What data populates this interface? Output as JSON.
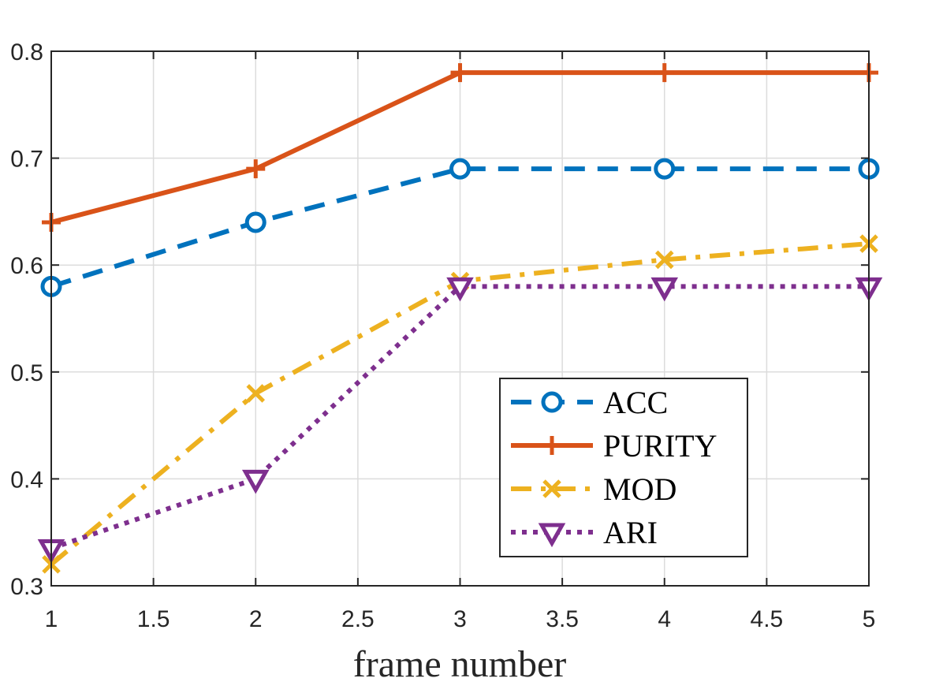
{
  "chart_data": {
    "type": "line",
    "title": "",
    "xlabel": "frame number",
    "ylabel": "",
    "xlim": [
      1,
      5
    ],
    "ylim": [
      0.3,
      0.8
    ],
    "grid": true,
    "x": [
      1,
      2,
      3,
      4,
      5
    ],
    "x_ticks": [
      1,
      1.5,
      2,
      2.5,
      3,
      3.5,
      4,
      4.5,
      5
    ],
    "x_tick_labels": [
      "1",
      "1.5",
      "2",
      "2.5",
      "3",
      "3.5",
      "4",
      "4.5",
      "5"
    ],
    "y_ticks": [
      0.3,
      0.4,
      0.5,
      0.6,
      0.7,
      0.8
    ],
    "y_tick_labels": [
      "0.3",
      "0.4",
      "0.5",
      "0.6",
      "0.7",
      "0.8"
    ],
    "legend_position": "bottom-right",
    "series": [
      {
        "name": "ACC",
        "values": [
          0.58,
          0.64,
          0.69,
          0.69,
          0.69
        ],
        "color": "#0072BD",
        "line_style": "dashed",
        "marker": "circle"
      },
      {
        "name": "PURITY",
        "values": [
          0.64,
          0.69,
          0.78,
          0.78,
          0.78
        ],
        "color": "#D95319",
        "line_style": "solid",
        "marker": "plus"
      },
      {
        "name": "MOD",
        "values": [
          0.32,
          0.48,
          0.585,
          0.605,
          0.62
        ],
        "color": "#EDB120",
        "line_style": "dashdot",
        "marker": "x"
      },
      {
        "name": "ARI",
        "values": [
          0.335,
          0.4,
          0.58,
          0.58,
          0.58
        ],
        "color": "#7E2F8E",
        "line_style": "dotted",
        "marker": "triangle-down"
      }
    ]
  }
}
